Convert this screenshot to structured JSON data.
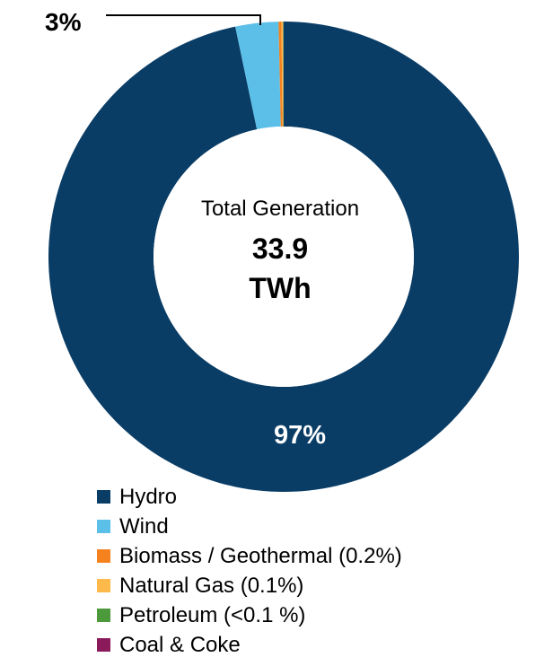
{
  "chart_data": {
    "type": "pie",
    "subtype": "donut",
    "center_label": "Total Generation",
    "total_value": "33.9",
    "total_unit": "TWh",
    "slices": [
      {
        "name": "Hydro",
        "value": 96.7,
        "color": "#0a3d66",
        "label": "97%"
      },
      {
        "name": "Wind",
        "value": 2.95,
        "color": "#5bbfe8",
        "label": "3%"
      },
      {
        "name": "Biomass / Geothermal (0.2%)",
        "value": 0.2,
        "color": "#f5821f"
      },
      {
        "name": "Natural Gas (0.1%)",
        "value": 0.1,
        "color": "#fdb94a"
      },
      {
        "name": "Petroleum (<0.1 %)",
        "value": 0.04,
        "color": "#4d9a3c"
      },
      {
        "name": "Coal & Coke",
        "value": 0.01,
        "color": "#8b1a5a"
      }
    ],
    "legend_position": "bottom-left"
  }
}
